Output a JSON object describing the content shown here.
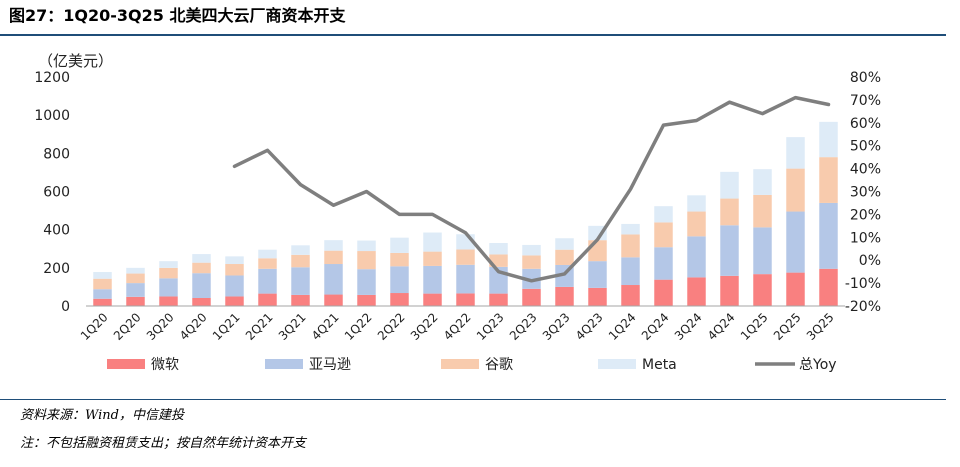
{
  "header": {
    "title": "图27：1Q20-3Q25 北美四大云厂商资本开支"
  },
  "footer": {
    "source": "资料来源：Wind，中信建投",
    "note": "注：不包括融资租赁支出；按自然年统计资本开支"
  },
  "chart_data": {
    "type": "bar",
    "stacked": true,
    "unit_label": "（亿美元）",
    "categories": [
      "1Q20",
      "2Q20",
      "3Q20",
      "4Q20",
      "1Q21",
      "2Q21",
      "3Q21",
      "4Q21",
      "1Q22",
      "2Q22",
      "3Q22",
      "4Q22",
      "1Q23",
      "2Q23",
      "3Q23",
      "4Q23",
      "1Q24",
      "2Q24",
      "3Q24",
      "4Q24",
      "1Q25",
      "2Q25",
      "3Q25"
    ],
    "y_ticks": [
      "0",
      "200",
      "400",
      "600",
      "800",
      "1000",
      "1200"
    ],
    "ylim": [
      0,
      1200
    ],
    "y2_ticks": [
      "-20%",
      "-10%",
      "0%",
      "10%",
      "20%",
      "30%",
      "40%",
      "50%",
      "60%",
      "70%",
      "80%"
    ],
    "y2lim": [
      -20,
      80
    ],
    "series": [
      {
        "name": "微软",
        "color": "#f98080",
        "values": [
          38,
          48,
          50,
          42,
          50,
          65,
          58,
          60,
          58,
          68,
          65,
          66,
          65,
          90,
          100,
          95,
          110,
          138,
          150,
          158,
          167,
          175,
          195
        ]
      },
      {
        "name": "亚马逊",
        "color": "#b4c7e7",
        "values": [
          50,
          72,
          95,
          130,
          110,
          130,
          145,
          160,
          135,
          140,
          145,
          150,
          140,
          105,
          115,
          140,
          145,
          170,
          215,
          265,
          245,
          320,
          345
        ]
      },
      {
        "name": "谷歌",
        "color": "#f8cbad",
        "values": [
          55,
          50,
          55,
          55,
          60,
          55,
          65,
          70,
          95,
          70,
          75,
          80,
          65,
          70,
          80,
          110,
          120,
          130,
          130,
          140,
          170,
          225,
          240
        ]
      },
      {
        "name": "Meta",
        "color": "#deebf7",
        "values": [
          35,
          30,
          35,
          45,
          40,
          45,
          50,
          55,
          55,
          80,
          100,
          80,
          60,
          55,
          60,
          75,
          55,
          85,
          85,
          140,
          135,
          165,
          185
        ]
      }
    ],
    "line": {
      "name": "总Yoy",
      "color": "#7f7f7f",
      "values": [
        null,
        null,
        null,
        null,
        41,
        48,
        33,
        24,
        30,
        20,
        20,
        12,
        -5,
        -9,
        -6,
        9,
        31,
        59,
        61,
        69,
        64,
        71,
        68
      ]
    },
    "legend_position": "bottom"
  }
}
